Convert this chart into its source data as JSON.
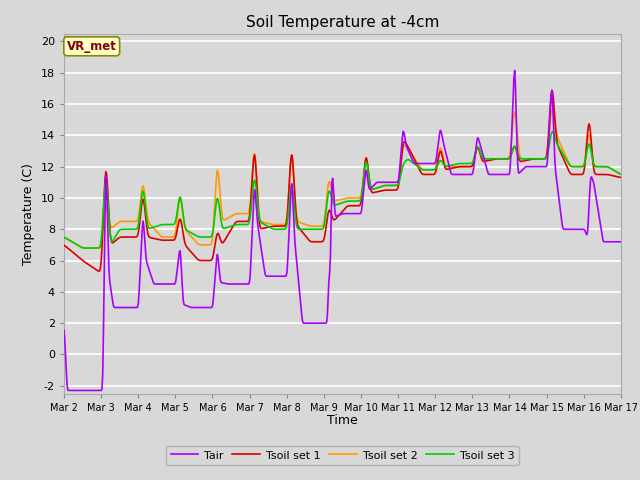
{
  "title": "Soil Temperature at -4cm",
  "xlabel": "Time",
  "ylabel": "Temperature (C)",
  "ylim": [
    -2.5,
    20.5
  ],
  "ytick_values": [
    -2,
    0,
    2,
    4,
    6,
    8,
    10,
    12,
    14,
    16,
    18,
    20
  ],
  "xtick_labels": [
    "Mar 2",
    "Mar 3",
    "Mar 4",
    "Mar 5",
    "Mar 6",
    "Mar 7",
    "Mar 8",
    "Mar 9",
    "Mar 10",
    "Mar 11",
    "Mar 12",
    "Mar 13",
    "Mar 14",
    "Mar 15",
    "Mar 16",
    "Mar 17"
  ],
  "line_colors": {
    "Tair": "#aa00ff",
    "Tsoil set 1": "#dd0000",
    "Tsoil set 2": "#ff9900",
    "Tsoil set 3": "#00cc00"
  },
  "background_color": "#d8d8d8",
  "plot_bg_color": "#d8d8d8",
  "grid_color": "#ffffff",
  "annotation_text": "VR_met",
  "annotation_box_facecolor": "#ffffcc",
  "annotation_box_edgecolor": "#888800",
  "annotation_text_color": "#880000",
  "title_fontsize": 11,
  "axis_label_fontsize": 9,
  "tick_fontsize": 8
}
